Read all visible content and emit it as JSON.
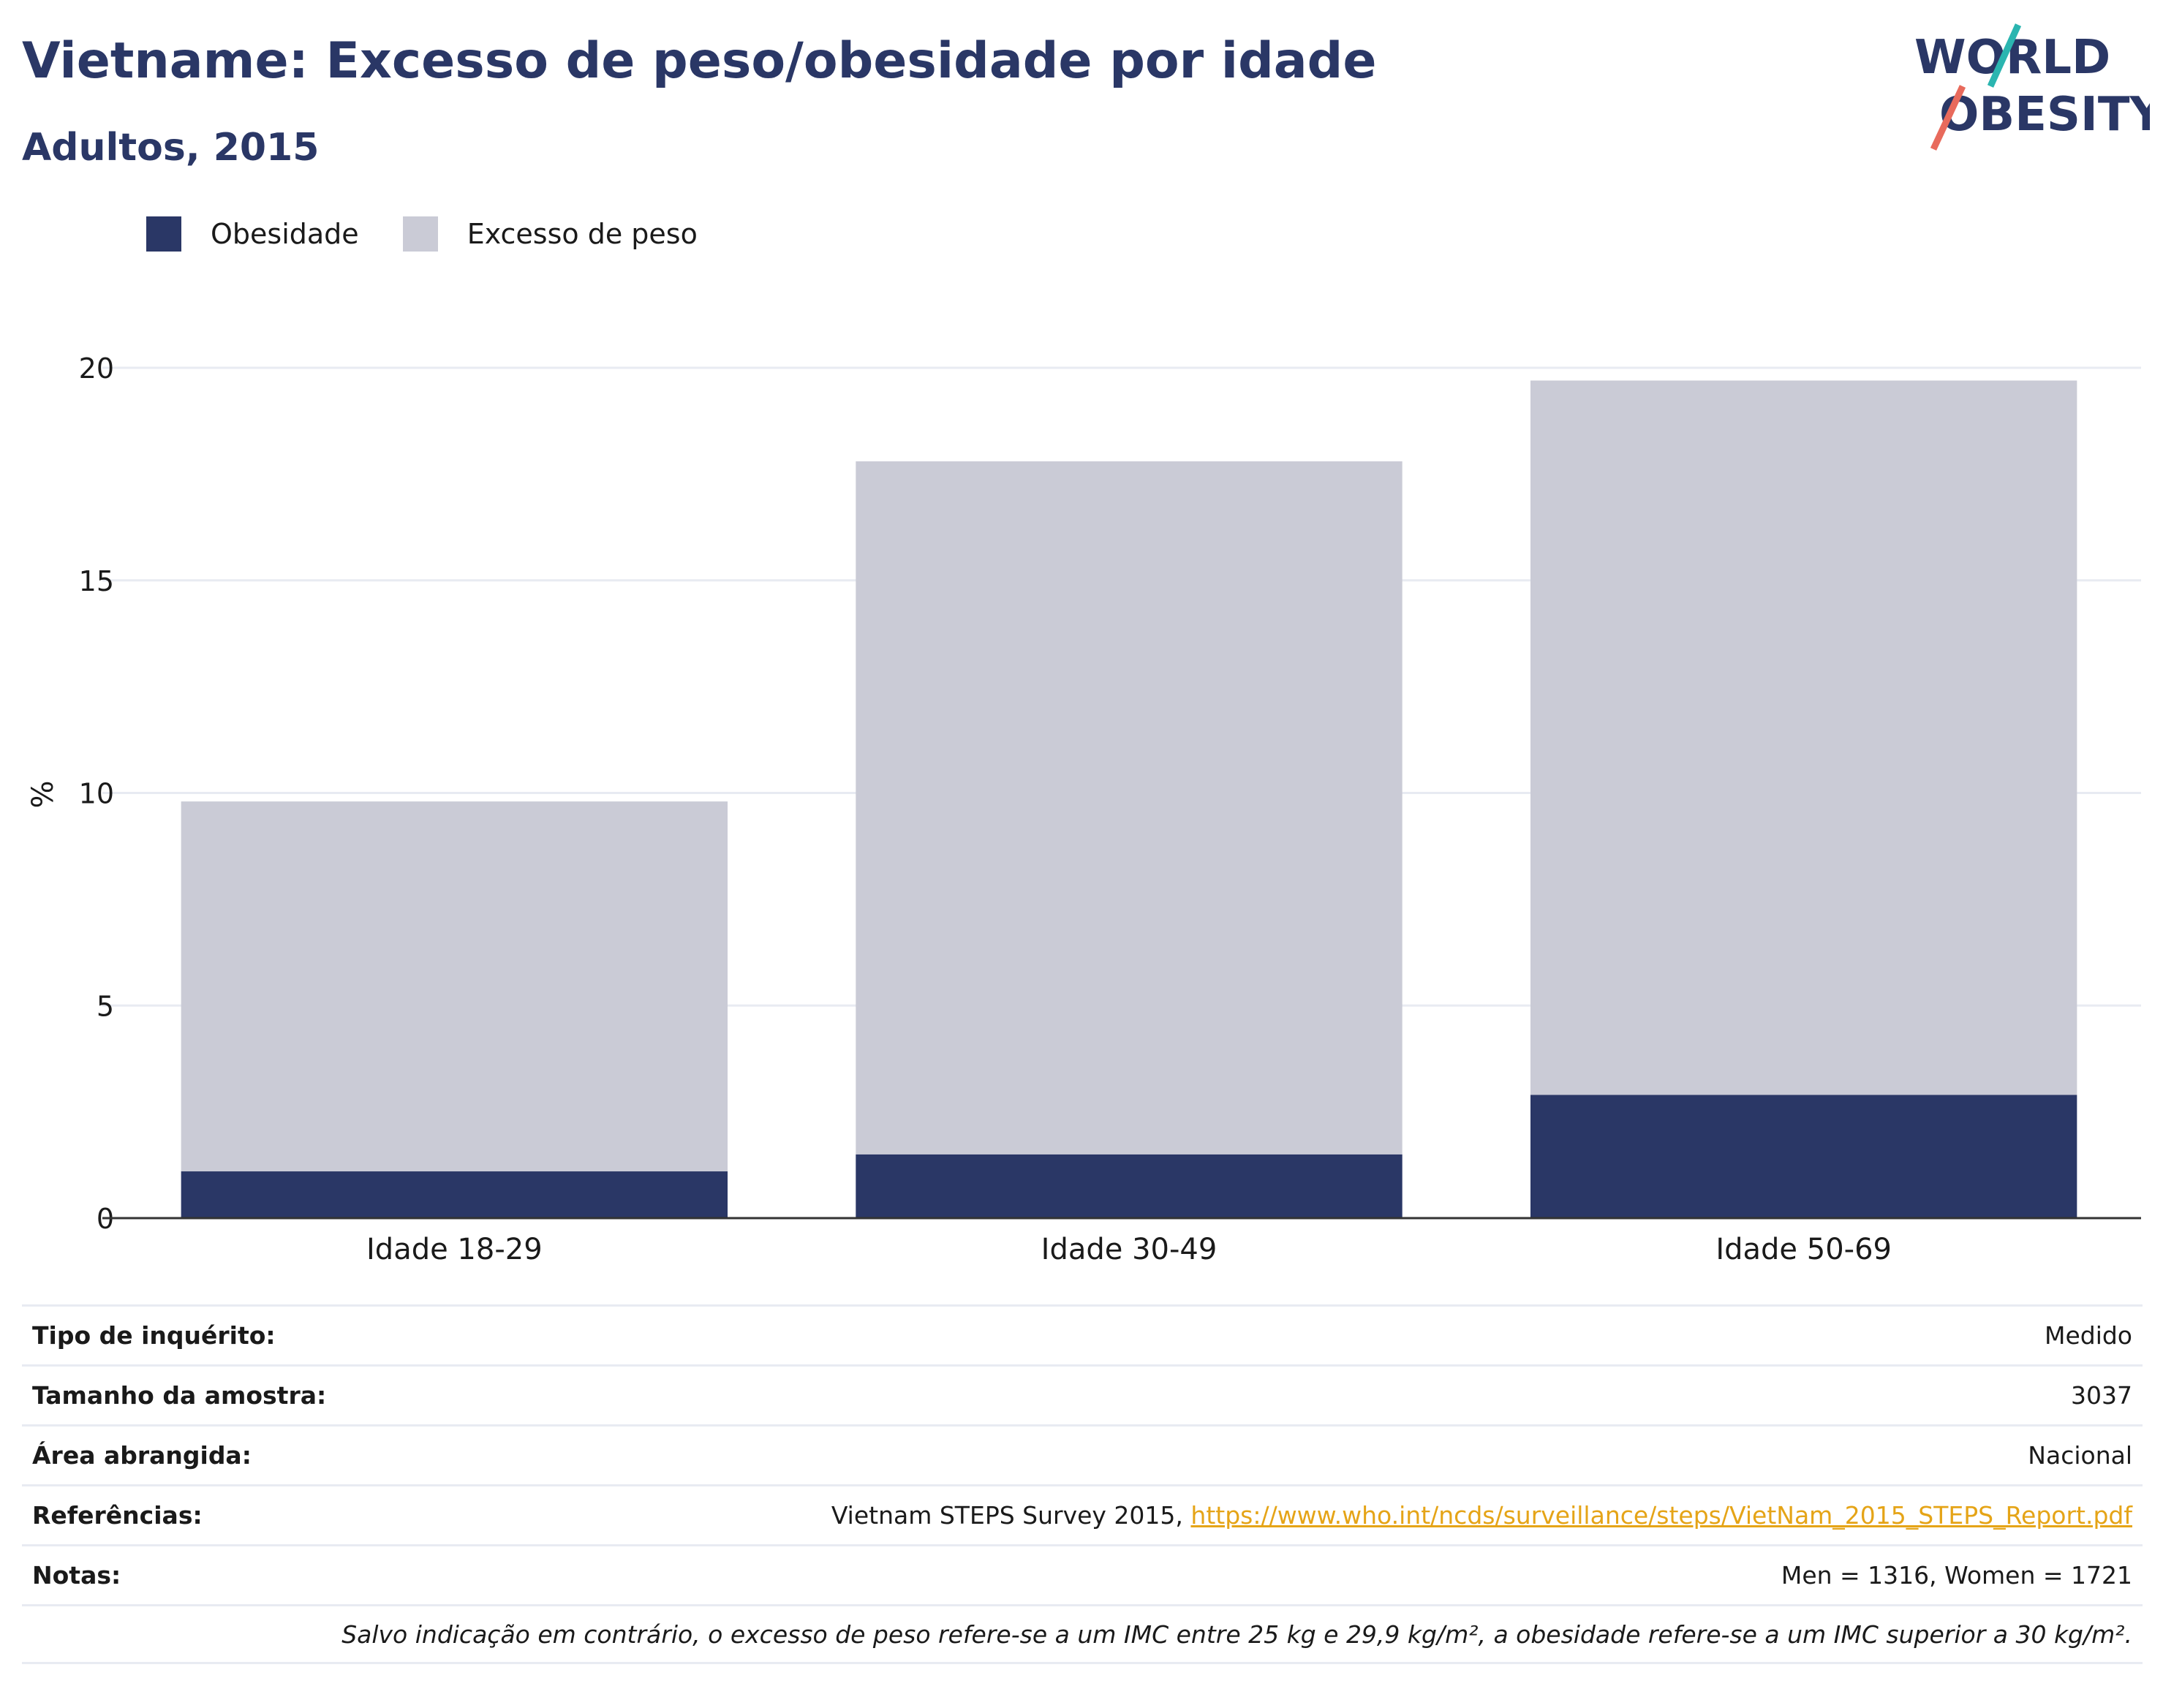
{
  "header": {
    "title": "Vietname: Excesso de peso/obesidade por idade",
    "subtitle": "Adultos, 2015",
    "logo_line1": "WORLD",
    "logo_line2": "OBESITY"
  },
  "colors": {
    "obesity": "#2a3766",
    "overweight": "#cacbd6",
    "accent_teal": "#2bb5b0",
    "accent_coral": "#e86a5c",
    "link": "#e5a417"
  },
  "chart_data": {
    "type": "bar",
    "stacked": true,
    "categories": [
      "Idade 18-29",
      "Idade 30-49",
      "Idade 50-69"
    ],
    "series": [
      {
        "name": "Obesidade",
        "values": [
          1.1,
          1.5,
          2.9
        ]
      },
      {
        "name": "Excesso de peso",
        "values": [
          8.7,
          16.3,
          16.8
        ]
      }
    ],
    "ylabel": "%",
    "xlabel": "",
    "ylim": [
      0,
      20
    ],
    "yticks": [
      0,
      5,
      10,
      15,
      20
    ],
    "grid": true,
    "legend_position": "top-left"
  },
  "info": {
    "rows": [
      {
        "label": "Tipo de inquérito:",
        "value": "Medido"
      },
      {
        "label": "Tamanho da amostra:",
        "value": "3037"
      },
      {
        "label": "Área abrangida:",
        "value": "Nacional"
      },
      {
        "label": "Referências:",
        "value": "Vietnam STEPS Survey 2015, ",
        "link": "https://www.who.int/ncds/surveillance/steps/VietNam_2015_STEPS_Report.pdf"
      },
      {
        "label": "Notas:",
        "value": "Men = 1316, Women = 1721"
      }
    ],
    "footnote": "Salvo indicação em contrário, o excesso de peso refere-se a um IMC entre 25 kg e 29,9 kg/m², a obesidade refere-se a um IMC superior a 30 kg/m²."
  }
}
